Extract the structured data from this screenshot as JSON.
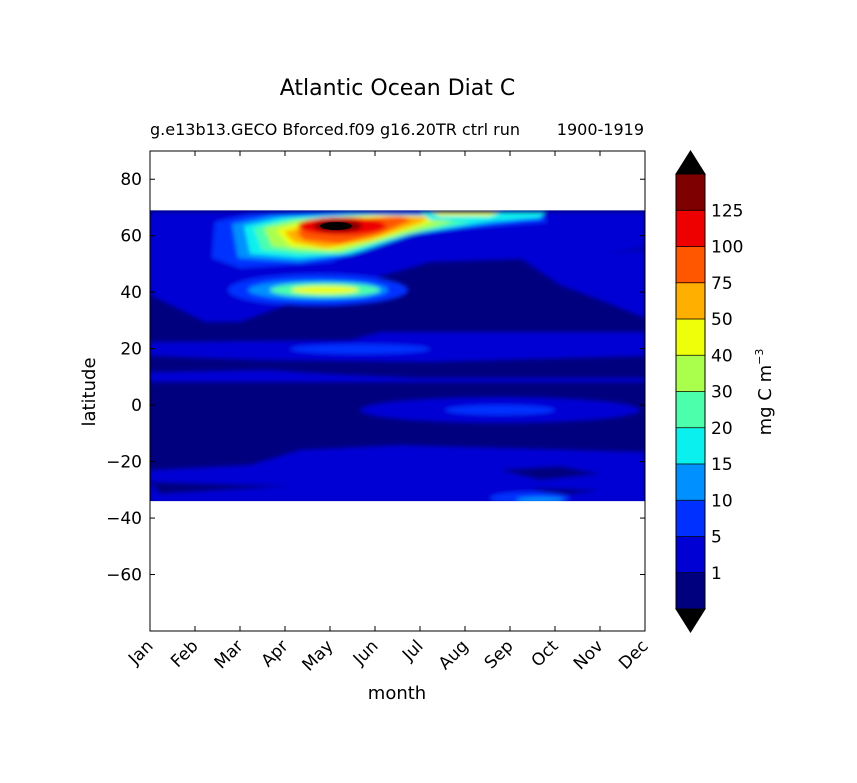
{
  "chart_data": {
    "type": "heatmap",
    "title": "Atlantic Ocean Diat C",
    "subtitle_left": "g.e13b13.GECO Bforced.f09 g16.20TR ctrl run",
    "subtitle_right": "1900-1919",
    "xlabel": "month",
    "ylabel": "latitude",
    "x_ticks": [
      "Jan",
      "Feb",
      "Mar",
      "Apr",
      "May",
      "Jun",
      "Jul",
      "Aug",
      "Sep",
      "Oct",
      "Nov",
      "Dec"
    ],
    "y_ticks": [
      80,
      60,
      40,
      20,
      0,
      -20,
      -40,
      -60
    ],
    "ylim": [
      -80,
      90
    ],
    "data_lat_range": [
      -34,
      69
    ],
    "colorbar": {
      "label": "mg C m",
      "label_sup": "−3",
      "levels": [
        0,
        1,
        5,
        10,
        15,
        20,
        30,
        40,
        50,
        75,
        100,
        125,
        150
      ],
      "tick_labels": [
        "1",
        "5",
        "10",
        "15",
        "20",
        "30",
        "40",
        "50",
        "75",
        "100",
        "125"
      ],
      "colors": [
        "#00007f",
        "#0000d4",
        "#0030ff",
        "#0090ff",
        "#0af0ee",
        "#4cffaa",
        "#aaff4d",
        "#eeff09",
        "#ffaf00",
        "#ff5600",
        "#ee0000",
        "#7f0000"
      ],
      "extend_low_color": "#000000",
      "extend_high_color": "#000000"
    },
    "grid": false
  }
}
